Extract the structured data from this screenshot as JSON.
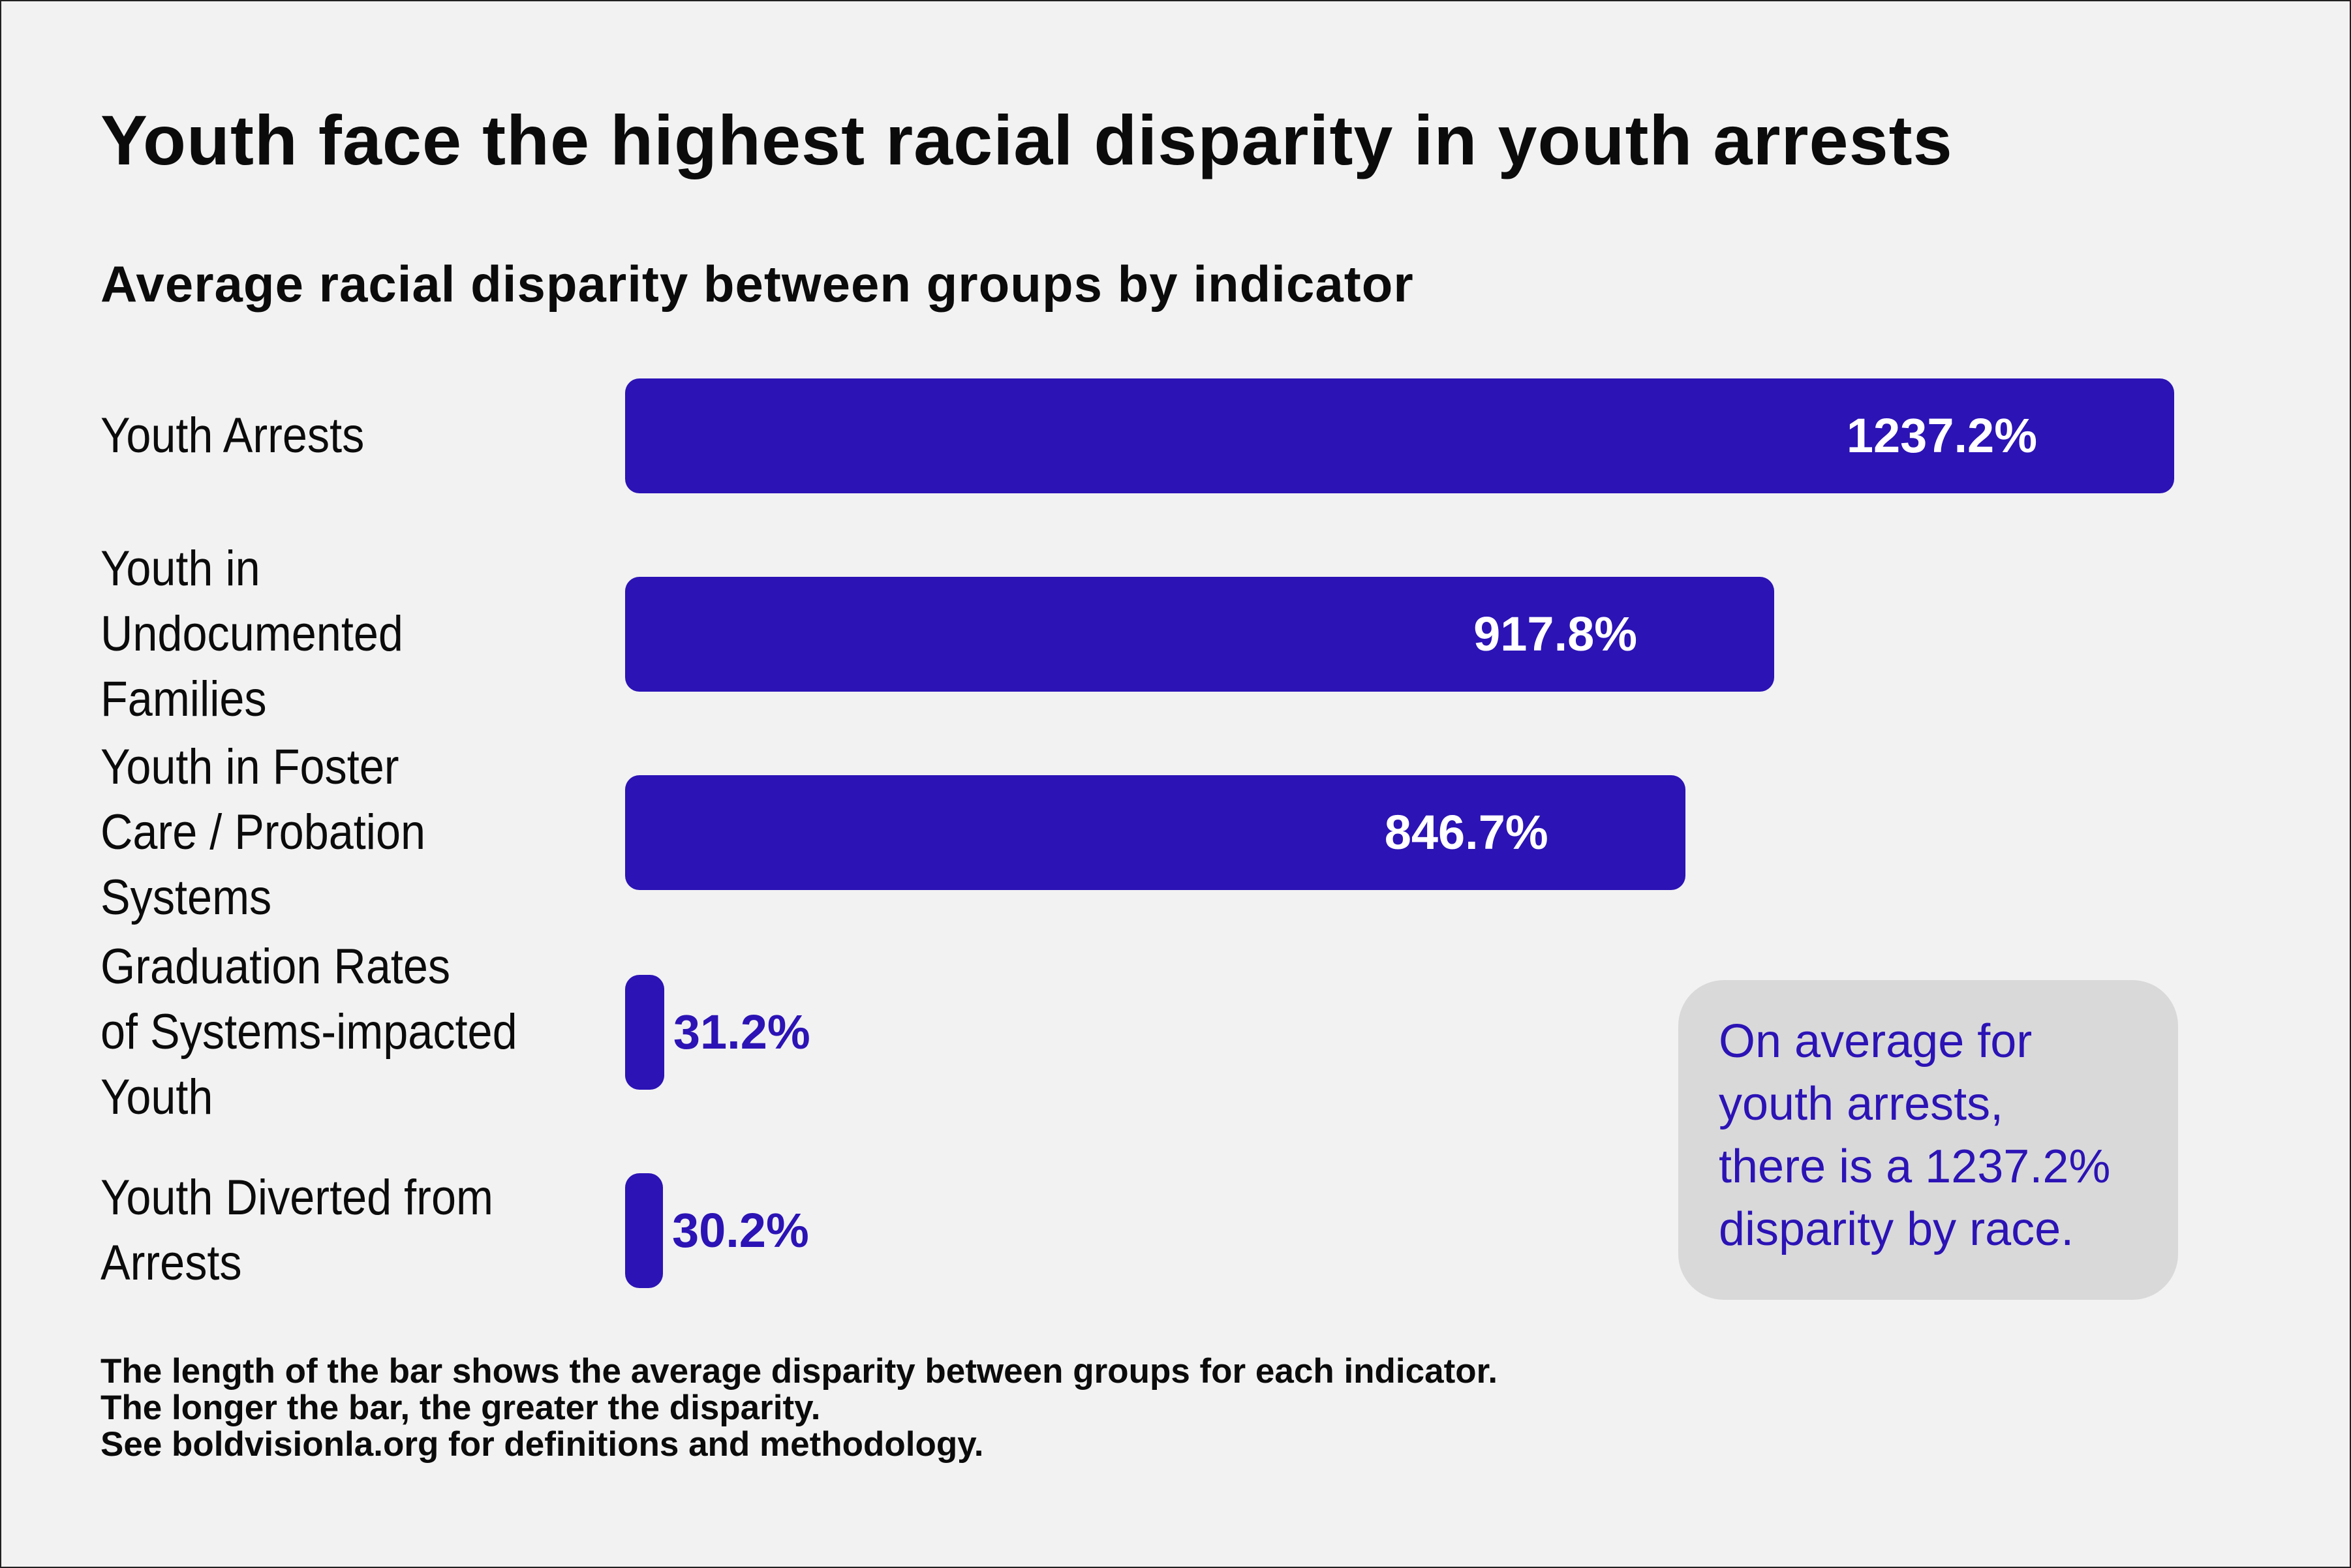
{
  "chart_data": {
    "type": "bar",
    "orientation": "horizontal",
    "title": "Youth face the highest racial disparity in youth arrests",
    "subtitle": "Average racial disparity between groups by indicator",
    "categories": [
      "Youth Arrests",
      "Youth in Undocumented Families",
      "Youth in Foster Care / Probation Systems",
      "Graduation Rates of Systems-impacted Youth",
      "Youth Diverted from Arrests"
    ],
    "values": [
      1237.2,
      917.8,
      846.7,
      31.2,
      30.2
    ],
    "data_labels": [
      "1237.2%",
      "917.8%",
      "846.7%",
      "31.2%",
      "30.2%"
    ],
    "bar_color": "#2b13b5",
    "grid": false
  },
  "callout": {
    "lines": [
      "On average for",
      "youth arrests,",
      "there is a 1237.2%",
      "disparity by race."
    ]
  },
  "footnote": {
    "lines": [
      "The length of the bar shows the average disparity between groups for each indicator.",
      "The longer the bar, the greater the disparity.",
      "See boldvisionla.org for definitions and methodology."
    ]
  }
}
